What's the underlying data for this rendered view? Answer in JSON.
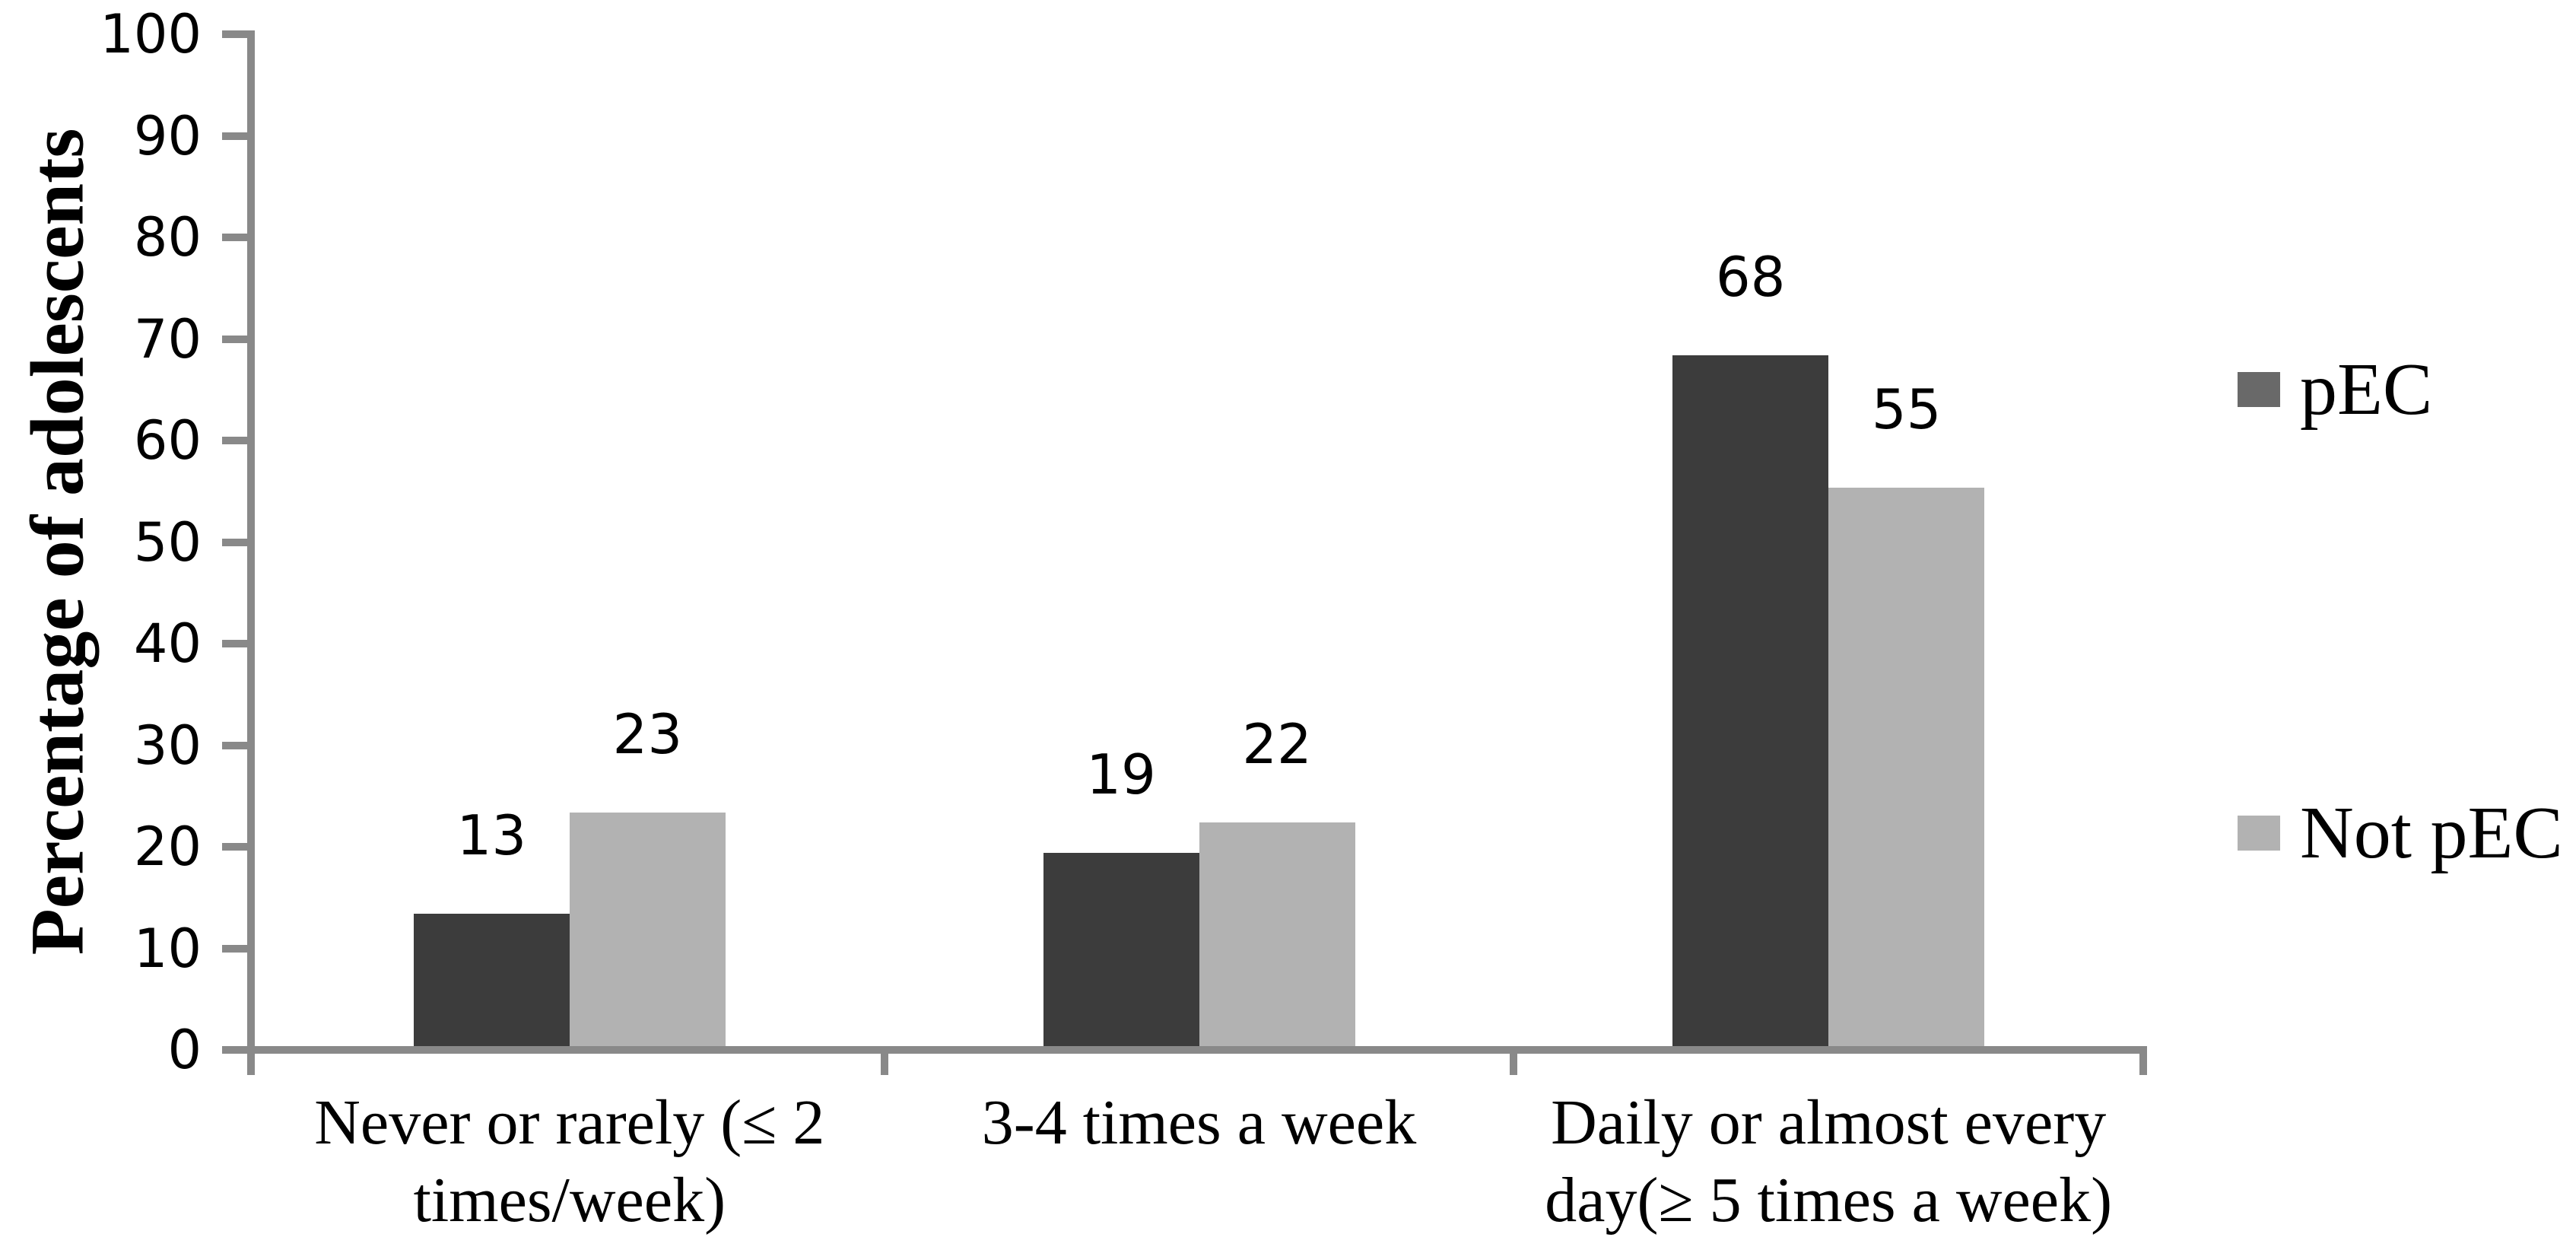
{
  "figure": {
    "background": "#ffffff"
  },
  "chart_data": {
    "type": "bar",
    "title": "",
    "ylabel": "Percentage of adolescents",
    "xlabel": "",
    "ylim": [
      0,
      100
    ],
    "yticks": [
      0,
      10,
      20,
      30,
      40,
      50,
      60,
      70,
      80,
      90,
      100
    ],
    "grid": false,
    "legend_position": "right",
    "axis_color": "#898989",
    "text_color": "#000000",
    "categories": [
      "Never or rarely (≤ 2\ntimes/week)",
      "3-4 times a week",
      "Daily or almost every\nday(≥ 5 times a week)"
    ],
    "series": [
      {
        "name": "pEC",
        "values": [
          13,
          19,
          68
        ],
        "color": "#3c3c3c",
        "legend_color": "#696969"
      },
      {
        "name": "Not pEC",
        "values": [
          23,
          22,
          55
        ],
        "color": "#b2b2b2",
        "legend_color": "#b2b2b2"
      }
    ],
    "data_labels": true
  }
}
